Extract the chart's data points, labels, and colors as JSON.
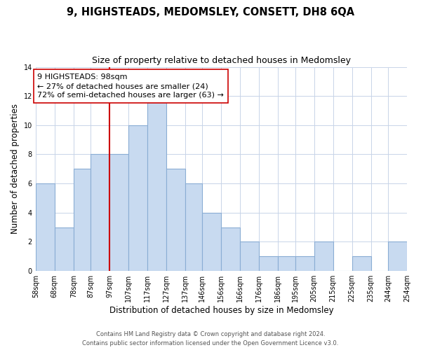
{
  "title": "9, HIGHSTEADS, MEDOMSLEY, CONSETT, DH8 6QA",
  "subtitle": "Size of property relative to detached houses in Medomsley",
  "xlabel": "Distribution of detached houses by size in Medomsley",
  "ylabel": "Number of detached properties",
  "bar_edges": [
    58,
    68,
    78,
    87,
    97,
    107,
    117,
    127,
    137,
    146,
    156,
    166,
    176,
    186,
    195,
    205,
    215,
    225,
    235,
    244,
    254
  ],
  "bar_heights": [
    6,
    3,
    7,
    8,
    8,
    10,
    12,
    7,
    6,
    4,
    3,
    2,
    1,
    1,
    1,
    2,
    0,
    1,
    0,
    2
  ],
  "tick_labels": [
    "58sqm",
    "68sqm",
    "78sqm",
    "87sqm",
    "97sqm",
    "107sqm",
    "117sqm",
    "127sqm",
    "137sqm",
    "146sqm",
    "156sqm",
    "166sqm",
    "176sqm",
    "186sqm",
    "195sqm",
    "205sqm",
    "215sqm",
    "225sqm",
    "235sqm",
    "244sqm",
    "254sqm"
  ],
  "bar_color": "#c8daf0",
  "bar_edge_color": "#8aadd4",
  "vline_x": 97,
  "vline_color": "#cc0000",
  "annotation_line1": "9 HIGHSTEADS: 98sqm",
  "annotation_line2": "← 27% of detached houses are smaller (24)",
  "annotation_line3": "72% of semi-detached houses are larger (63) →",
  "annotation_box_color": "#ffffff",
  "annotation_box_edge": "#cc0000",
  "ylim": [
    0,
    14
  ],
  "yticks": [
    0,
    2,
    4,
    6,
    8,
    10,
    12,
    14
  ],
  "footer_line1": "Contains HM Land Registry data © Crown copyright and database right 2024.",
  "footer_line2": "Contains public sector information licensed under the Open Government Licence v3.0.",
  "bg_color": "#ffffff",
  "grid_color": "#c8d4e8",
  "title_fontsize": 10.5,
  "subtitle_fontsize": 9,
  "axis_label_fontsize": 8.5,
  "tick_fontsize": 7,
  "annotation_fontsize": 8,
  "footer_fontsize": 6
}
